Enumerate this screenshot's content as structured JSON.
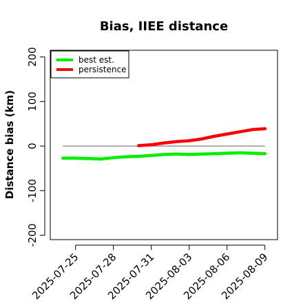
{
  "chart_data": {
    "type": "line",
    "title": "Bias, IIEE distance",
    "xlabel": "",
    "ylabel": "Distance bias (km)",
    "x_dates": [
      "2025-07-24",
      "2025-07-25",
      "2025-07-26",
      "2025-07-27",
      "2025-07-28",
      "2025-07-29",
      "2025-07-30",
      "2025-07-31",
      "2025-08-01",
      "2025-08-02",
      "2025-08-03",
      "2025-08-04",
      "2025-08-05",
      "2025-08-06",
      "2025-08-07",
      "2025-08-08",
      "2025-08-09"
    ],
    "x_ticks": [
      "2025-07-25",
      "2025-07-28",
      "2025-07-31",
      "2025-08-03",
      "2025-08-06",
      "2025-08-09"
    ],
    "xlim": [
      "2025-07-23",
      "2025-08-10"
    ],
    "ylim": [
      -210,
      215
    ],
    "y_ticks": [
      -200,
      -100,
      0,
      100,
      200
    ],
    "reference_line": {
      "y": 0,
      "from": "2025-07-24",
      "to": "2025-08-09",
      "color": "#7f7f7f"
    },
    "series": [
      {
        "name": "best est.",
        "color": "#00ee00",
        "x": [
          "2025-07-24",
          "2025-07-25",
          "2025-07-26",
          "2025-07-27",
          "2025-07-28",
          "2025-07-29",
          "2025-07-30",
          "2025-07-31",
          "2025-08-01",
          "2025-08-02",
          "2025-08-03",
          "2025-08-04",
          "2025-08-05",
          "2025-08-06",
          "2025-08-07",
          "2025-08-08",
          "2025-08-09"
        ],
        "values": [
          -27,
          -27,
          -28,
          -29,
          -26,
          -24,
          -23,
          -21,
          -19,
          -18,
          -19,
          -18,
          -17,
          -16,
          -15,
          -16,
          -17
        ]
      },
      {
        "name": "persistence",
        "color": "#ff0000",
        "x": [
          "2025-07-30",
          "2025-07-31",
          "2025-08-01",
          "2025-08-02",
          "2025-08-03",
          "2025-08-04",
          "2025-08-05",
          "2025-08-06",
          "2025-08-07",
          "2025-08-08",
          "2025-08-09"
        ],
        "values": [
          1,
          3,
          7,
          10,
          12,
          16,
          22,
          27,
          32,
          37,
          39
        ]
      }
    ],
    "legend": {
      "position": "top-left",
      "entries": [
        "best est.",
        "persistence"
      ]
    },
    "grid": false
  }
}
